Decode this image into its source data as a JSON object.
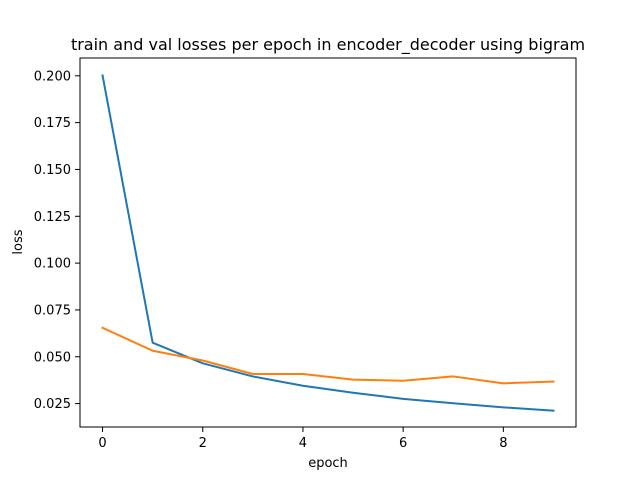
{
  "chart_data": {
    "type": "line",
    "title": "train and val losses per epoch in encoder_decoder using bigram",
    "xlabel": "epoch",
    "ylabel": "loss",
    "x": [
      0,
      1,
      2,
      3,
      4,
      5,
      6,
      7,
      8,
      9
    ],
    "xlim": [
      -0.45,
      9.45
    ],
    "ylim": [
      0.0125,
      0.2095
    ],
    "xticks": [
      0,
      2,
      4,
      6,
      8
    ],
    "xtick_labels": [
      "0",
      "2",
      "4",
      "6",
      "8"
    ],
    "yticks": [
      0.025,
      0.05,
      0.075,
      0.1,
      0.125,
      0.15,
      0.175,
      0.2
    ],
    "ytick_labels": [
      "0.025",
      "0.050",
      "0.075",
      "0.100",
      "0.125",
      "0.150",
      "0.175",
      "0.200"
    ],
    "grid": false,
    "legend": "none",
    "series": [
      {
        "color": "#1f77b4",
        "values": [
          0.2002,
          0.0575,
          0.0465,
          0.0395,
          0.0345,
          0.0308,
          0.0275,
          0.0252,
          0.023,
          0.0212
        ]
      },
      {
        "color": "#ff7f0e",
        "values": [
          0.0655,
          0.0532,
          0.048,
          0.0408,
          0.0408,
          0.0378,
          0.0372,
          0.0395,
          0.0358,
          0.0368
        ]
      }
    ]
  }
}
